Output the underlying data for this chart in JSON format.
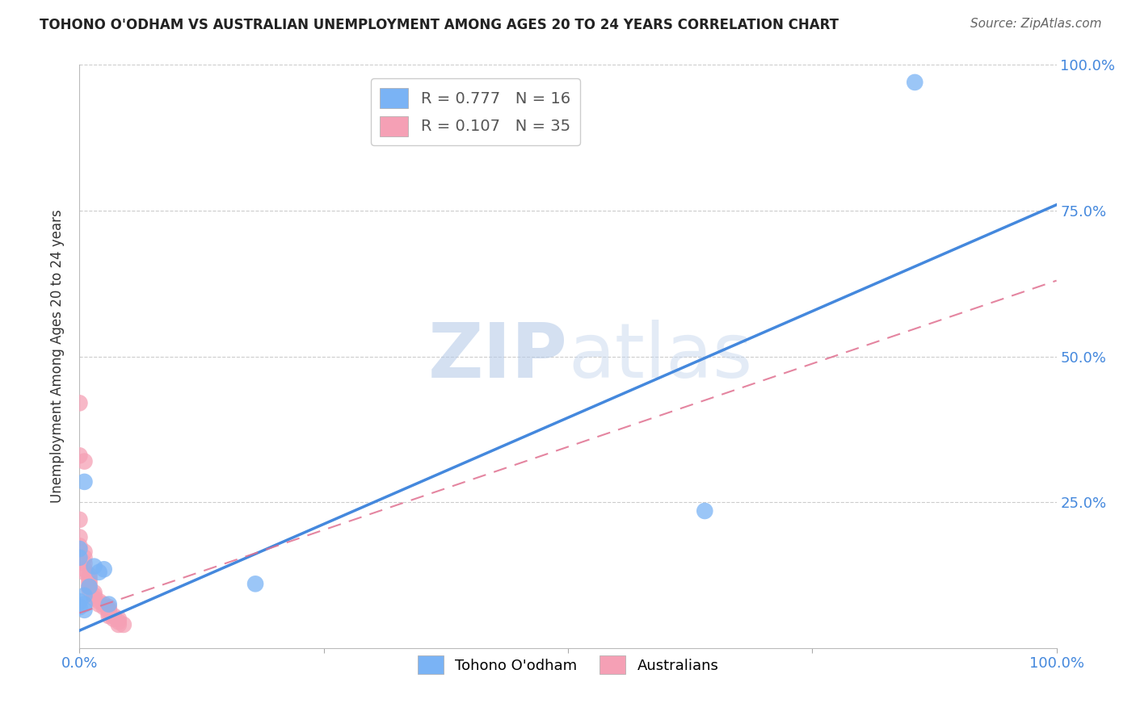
{
  "title": "TOHONO O'ODHAM VS AUSTRALIAN UNEMPLOYMENT AMONG AGES 20 TO 24 YEARS CORRELATION CHART",
  "source": "Source: ZipAtlas.com",
  "ylabel": "Unemployment Among Ages 20 to 24 years",
  "xlim": [
    0,
    1.0
  ],
  "ylim": [
    0,
    1.0
  ],
  "blue_R": "0.777",
  "blue_N": "16",
  "pink_R": "0.107",
  "pink_N": "35",
  "legend_label_blue": "Tohono O'odham",
  "legend_label_pink": "Australians",
  "blue_color": "#7ab3f5",
  "pink_color": "#f5a0b5",
  "blue_line_color": "#4488dd",
  "pink_line_color": "#e07090",
  "watermark_zip": "ZIP",
  "watermark_atlas": "atlas",
  "blue_dots": [
    [
      0.005,
      0.285
    ],
    [
      0.0,
      0.17
    ],
    [
      0.0,
      0.155
    ],
    [
      0.015,
      0.14
    ],
    [
      0.02,
      0.13
    ],
    [
      0.025,
      0.135
    ],
    [
      0.01,
      0.105
    ],
    [
      0.005,
      0.09
    ],
    [
      0.005,
      0.075
    ],
    [
      0.005,
      0.065
    ],
    [
      0.03,
      0.075
    ],
    [
      0.18,
      0.11
    ],
    [
      0.64,
      0.235
    ],
    [
      0.855,
      0.97
    ],
    [
      0.0,
      0.08
    ],
    [
      0.0,
      0.07
    ]
  ],
  "pink_dots": [
    [
      0.0,
      0.42
    ],
    [
      0.0,
      0.33
    ],
    [
      0.005,
      0.32
    ],
    [
      0.0,
      0.22
    ],
    [
      0.0,
      0.19
    ],
    [
      0.0,
      0.175
    ],
    [
      0.005,
      0.165
    ],
    [
      0.005,
      0.155
    ],
    [
      0.005,
      0.145
    ],
    [
      0.005,
      0.135
    ],
    [
      0.005,
      0.13
    ],
    [
      0.01,
      0.125
    ],
    [
      0.01,
      0.12
    ],
    [
      0.01,
      0.115
    ],
    [
      0.01,
      0.11
    ],
    [
      0.01,
      0.105
    ],
    [
      0.01,
      0.1
    ],
    [
      0.015,
      0.095
    ],
    [
      0.015,
      0.09
    ],
    [
      0.015,
      0.085
    ],
    [
      0.02,
      0.08
    ],
    [
      0.02,
      0.075
    ],
    [
      0.025,
      0.075
    ],
    [
      0.025,
      0.07
    ],
    [
      0.03,
      0.07
    ],
    [
      0.03,
      0.065
    ],
    [
      0.03,
      0.065
    ],
    [
      0.03,
      0.06
    ],
    [
      0.03,
      0.055
    ],
    [
      0.035,
      0.055
    ],
    [
      0.035,
      0.05
    ],
    [
      0.04,
      0.05
    ],
    [
      0.04,
      0.045
    ],
    [
      0.04,
      0.04
    ],
    [
      0.045,
      0.04
    ]
  ],
  "blue_line": [
    0.0,
    0.03,
    1.0,
    0.76
  ],
  "pink_line": [
    0.0,
    0.06,
    1.0,
    0.63
  ],
  "ytick_labels": [
    "25.0%",
    "50.0%",
    "75.0%",
    "100.0%"
  ],
  "ytick_positions": [
    0.25,
    0.5,
    0.75,
    1.0
  ],
  "xtick_labels_show": [
    "0.0%",
    "100.0%"
  ],
  "xtick_positions_show": [
    0.0,
    1.0
  ],
  "grid_color": "#cccccc",
  "tick_color": "#4488dd",
  "title_fontsize": 12,
  "source_fontsize": 11,
  "dot_size": 220
}
